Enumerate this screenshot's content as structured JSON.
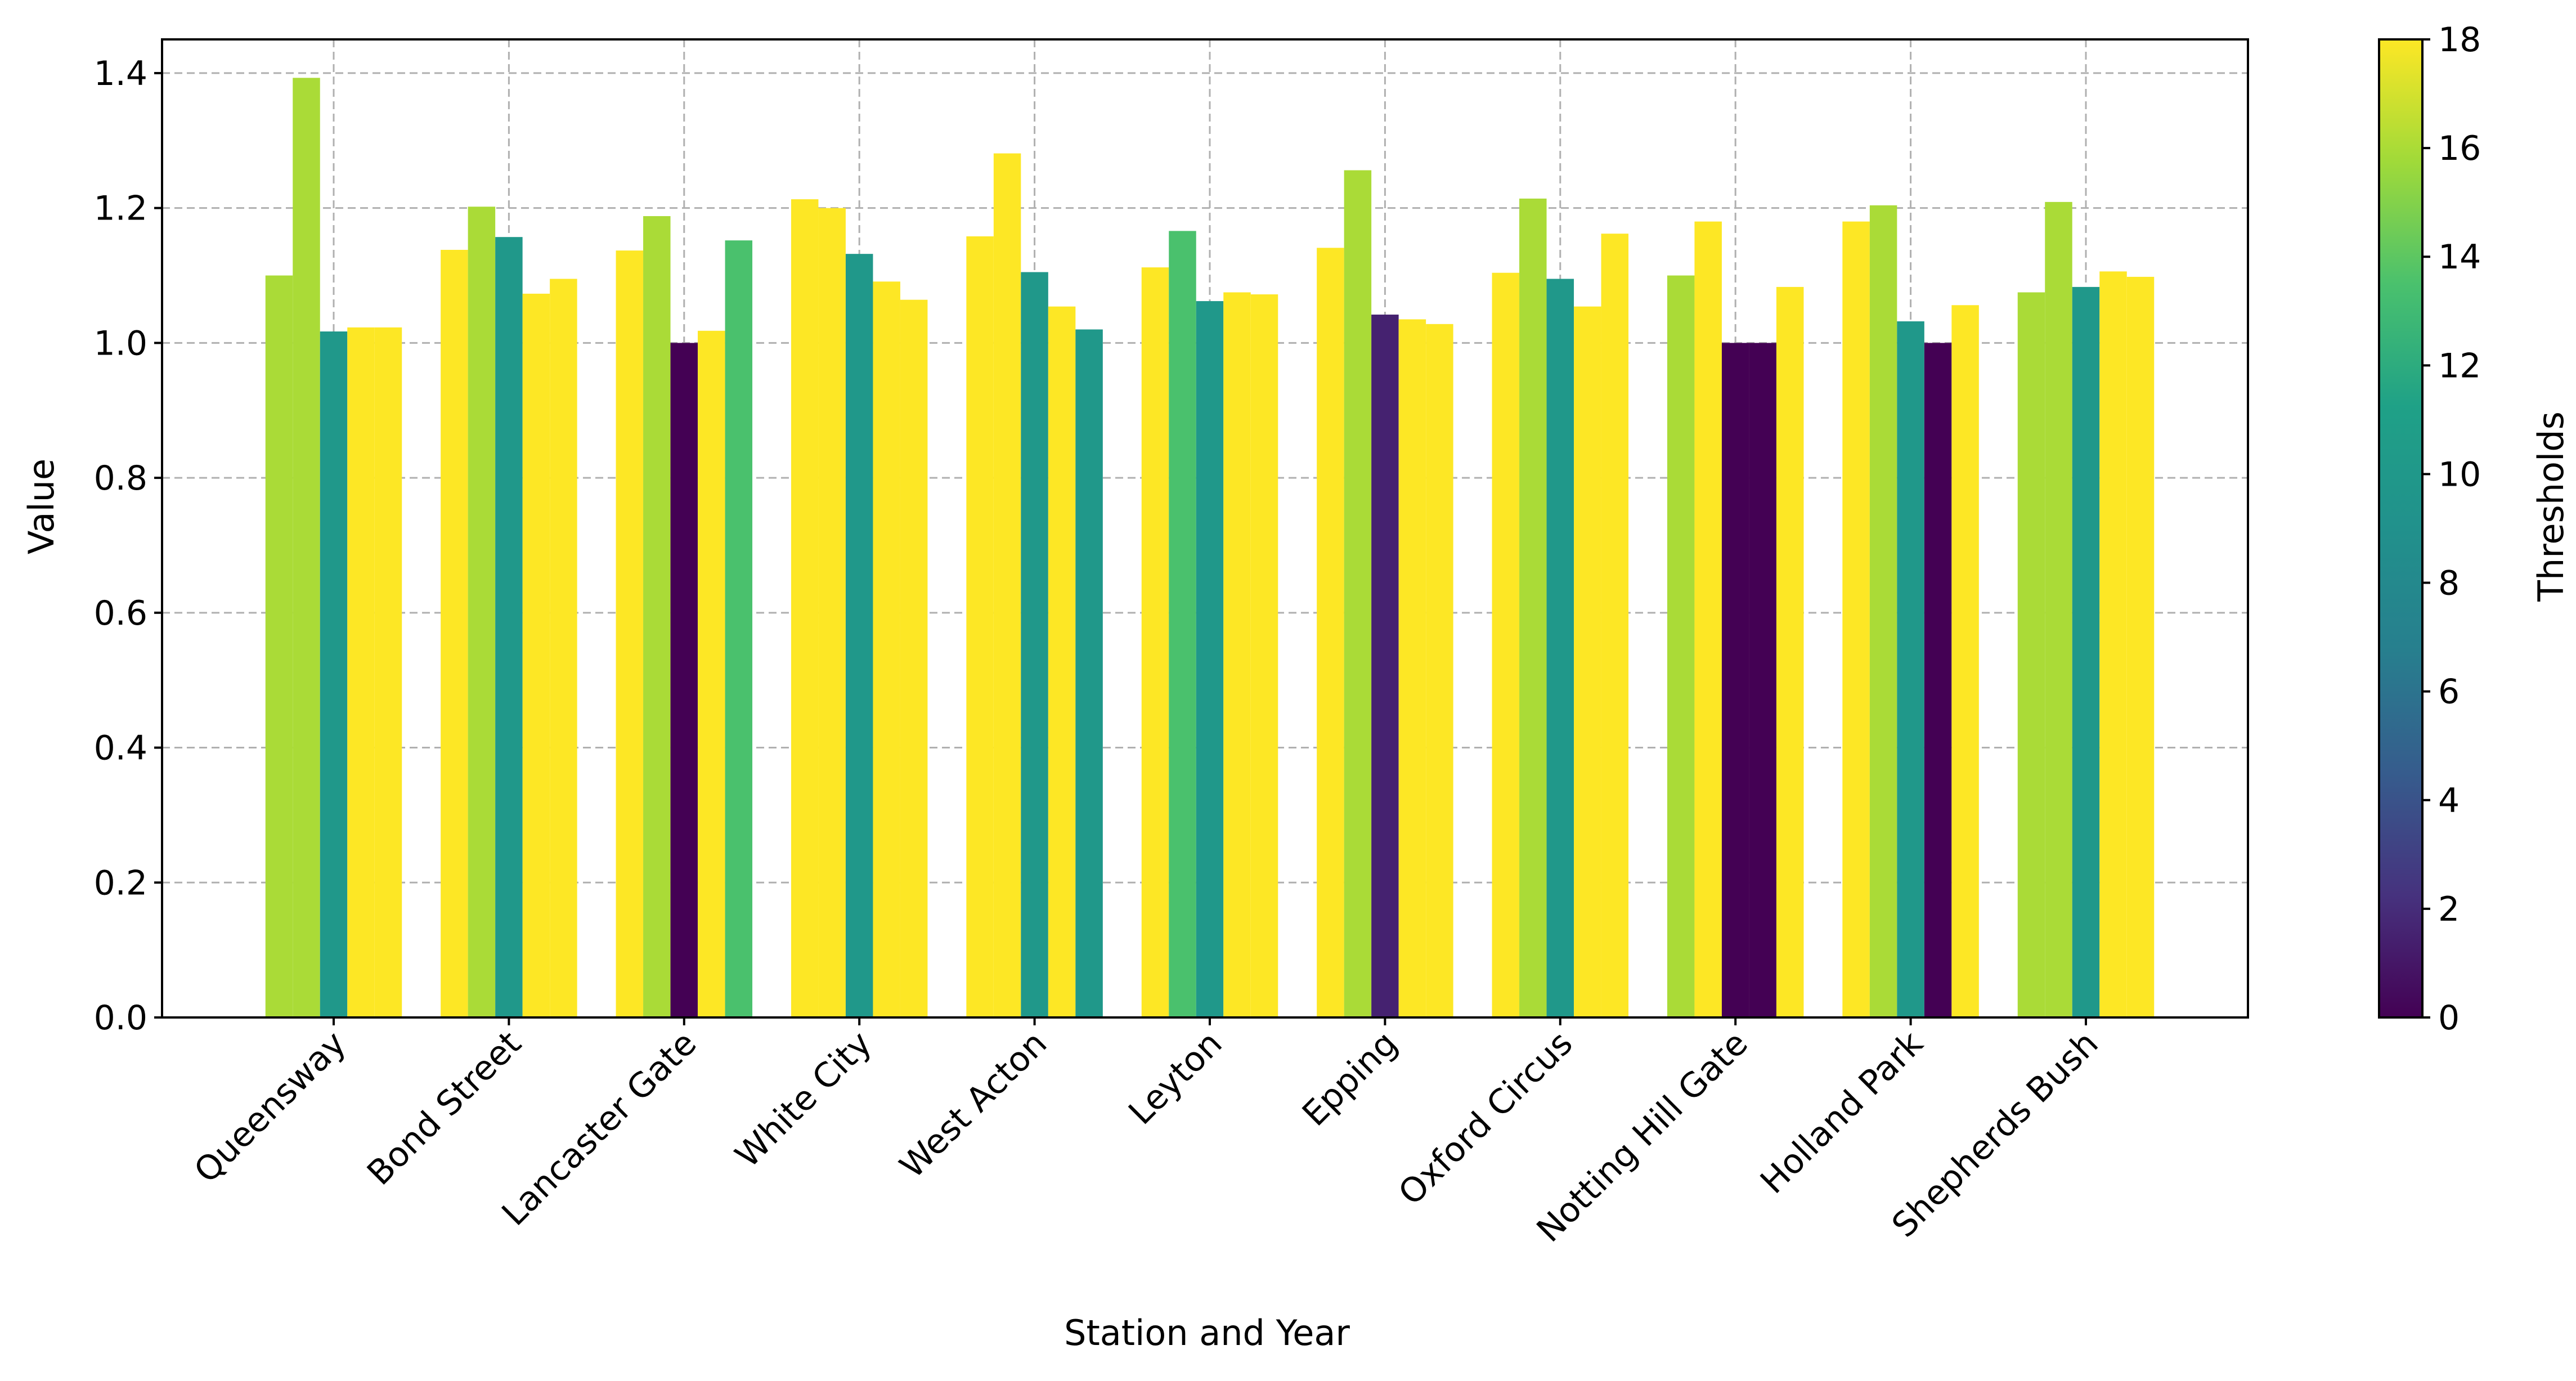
{
  "chart_data": {
    "type": "bar",
    "title": "",
    "xlabel": "Station and Year",
    "ylabel": "Value",
    "ylim": [
      0,
      1.45
    ],
    "yticks": [
      "0.0",
      "0.2",
      "0.4",
      "0.6",
      "0.8",
      "1.0",
      "1.2",
      "1.4"
    ],
    "grid": true,
    "colorbar": {
      "label": "Thresholds",
      "range": [
        0,
        18
      ],
      "ticks": [
        "0",
        "2",
        "4",
        "6",
        "8",
        "10",
        "12",
        "14",
        "16",
        "18"
      ],
      "colormap": "viridis"
    },
    "categories": [
      "Queensway",
      "Bond Street",
      "Lancaster Gate",
      "White City",
      "West Acton",
      "Leyton",
      "Epping",
      "Oxford Circus",
      "Notting Hill Gate",
      "Holland Park",
      "Shepherds Bush"
    ],
    "bars_per_category": 5,
    "values": [
      [
        1.1,
        1.393,
        1.017,
        1.023,
        1.023
      ],
      [
        1.138,
        1.202,
        1.157,
        1.073,
        1.095
      ],
      [
        1.137,
        1.188,
        1.0,
        1.018,
        1.152
      ],
      [
        1.213,
        1.2,
        1.132,
        1.091,
        1.064
      ],
      [
        1.158,
        1.281,
        1.105,
        1.054,
        1.02
      ],
      [
        1.112,
        1.166,
        1.062,
        1.075,
        1.072
      ],
      [
        1.141,
        1.256,
        1.042,
        1.035,
        1.028
      ],
      [
        1.104,
        1.214,
        1.095,
        1.054,
        1.162
      ],
      [
        1.1,
        1.18,
        1.0,
        1.0,
        1.083
      ],
      [
        1.18,
        1.204,
        1.032,
        1.0,
        1.056
      ],
      [
        1.075,
        1.209,
        1.083,
        1.106,
        1.098
      ]
    ],
    "threshold_values": [
      [
        16,
        16,
        10,
        18,
        18
      ],
      [
        18,
        16,
        10,
        18,
        18
      ],
      [
        18,
        16,
        0,
        18,
        13.5
      ],
      [
        18,
        18,
        10,
        18,
        18
      ],
      [
        18,
        18,
        10,
        18,
        10
      ],
      [
        18,
        13.5,
        10,
        18,
        18
      ],
      [
        18,
        16,
        1.5,
        18,
        18
      ],
      [
        18,
        16,
        10,
        18,
        18
      ],
      [
        16,
        18,
        0,
        0,
        18
      ],
      [
        18,
        16,
        10,
        0,
        18
      ],
      [
        16,
        16,
        10,
        18,
        18
      ]
    ]
  }
}
